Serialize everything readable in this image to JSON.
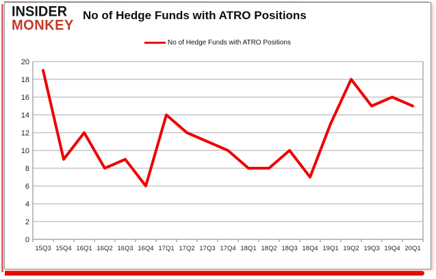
{
  "header": {
    "logo_line1": "INSIDER",
    "logo_line2": "MONKEY",
    "title": "No of Hedge Funds with ATRO Positions"
  },
  "legend": {
    "label": "No of Hedge Funds with ATRO Positions"
  },
  "chart_data": {
    "type": "line",
    "title": "No of Hedge Funds with ATRO Positions",
    "series": [
      {
        "name": "No of Hedge Funds with ATRO Positions",
        "values": [
          19,
          9,
          12,
          8,
          9,
          6,
          14,
          12,
          11,
          10,
          8,
          8,
          10,
          7,
          13,
          18,
          15,
          16,
          15
        ]
      }
    ],
    "categories": [
      "15Q3",
      "15Q4",
      "16Q1",
      "16Q2",
      "16Q3",
      "16Q4",
      "17Q1",
      "17Q2",
      "17Q3",
      "17Q4",
      "18Q1",
      "18Q2",
      "18Q3",
      "18Q4",
      "19Q1",
      "19Q2",
      "19Q3",
      "19Q4",
      "20Q1"
    ],
    "xlabel": "",
    "ylabel": "",
    "ylim": [
      0,
      20
    ],
    "ytick_step": 2,
    "grid": true,
    "legend_position": "top-center"
  },
  "colors": {
    "line": "#ee0000",
    "logo_red": "#c23a28",
    "accent_red": "#e30b00",
    "gridline": "#a8a8a8",
    "axis": "#7f7f7f",
    "label_text": "#1f1f1f"
  }
}
